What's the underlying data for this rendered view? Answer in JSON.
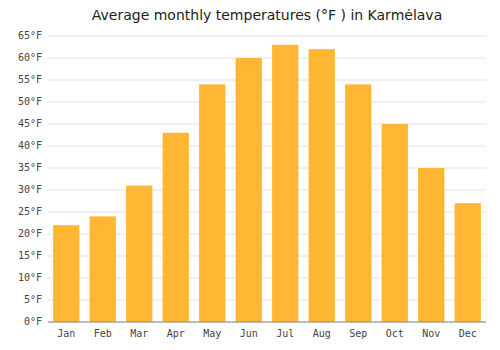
{
  "chart_data": {
    "type": "bar",
    "title": "Average monthly temperatures (°F ) in Karmėlava",
    "categories": [
      "Jan",
      "Feb",
      "Mar",
      "Apr",
      "May",
      "Jun",
      "Jul",
      "Aug",
      "Sep",
      "Oct",
      "Nov",
      "Dec"
    ],
    "values": [
      22,
      24,
      31,
      43,
      54,
      60,
      63,
      62,
      54,
      45,
      35,
      27
    ],
    "color": "#FFB733",
    "ylim": [
      0,
      65
    ],
    "yticks": [
      {
        "value": 0,
        "label": "0°F"
      },
      {
        "value": 5,
        "label": "5°F"
      },
      {
        "value": 10,
        "label": "10°F"
      },
      {
        "value": 15,
        "label": "15°F"
      },
      {
        "value": 20,
        "label": "20°F"
      },
      {
        "value": 25,
        "label": "25°F"
      },
      {
        "value": 30,
        "label": "30°F"
      },
      {
        "value": 35,
        "label": "35°F"
      },
      {
        "value": 40,
        "label": "40°F"
      },
      {
        "value": 45,
        "label": "45°F"
      },
      {
        "value": 50,
        "label": "50°F"
      },
      {
        "value": 55,
        "label": "55°F"
      },
      {
        "value": 60,
        "label": "60°F"
      },
      {
        "value": 65,
        "label": "65°F"
      }
    ],
    "grid": true
  }
}
